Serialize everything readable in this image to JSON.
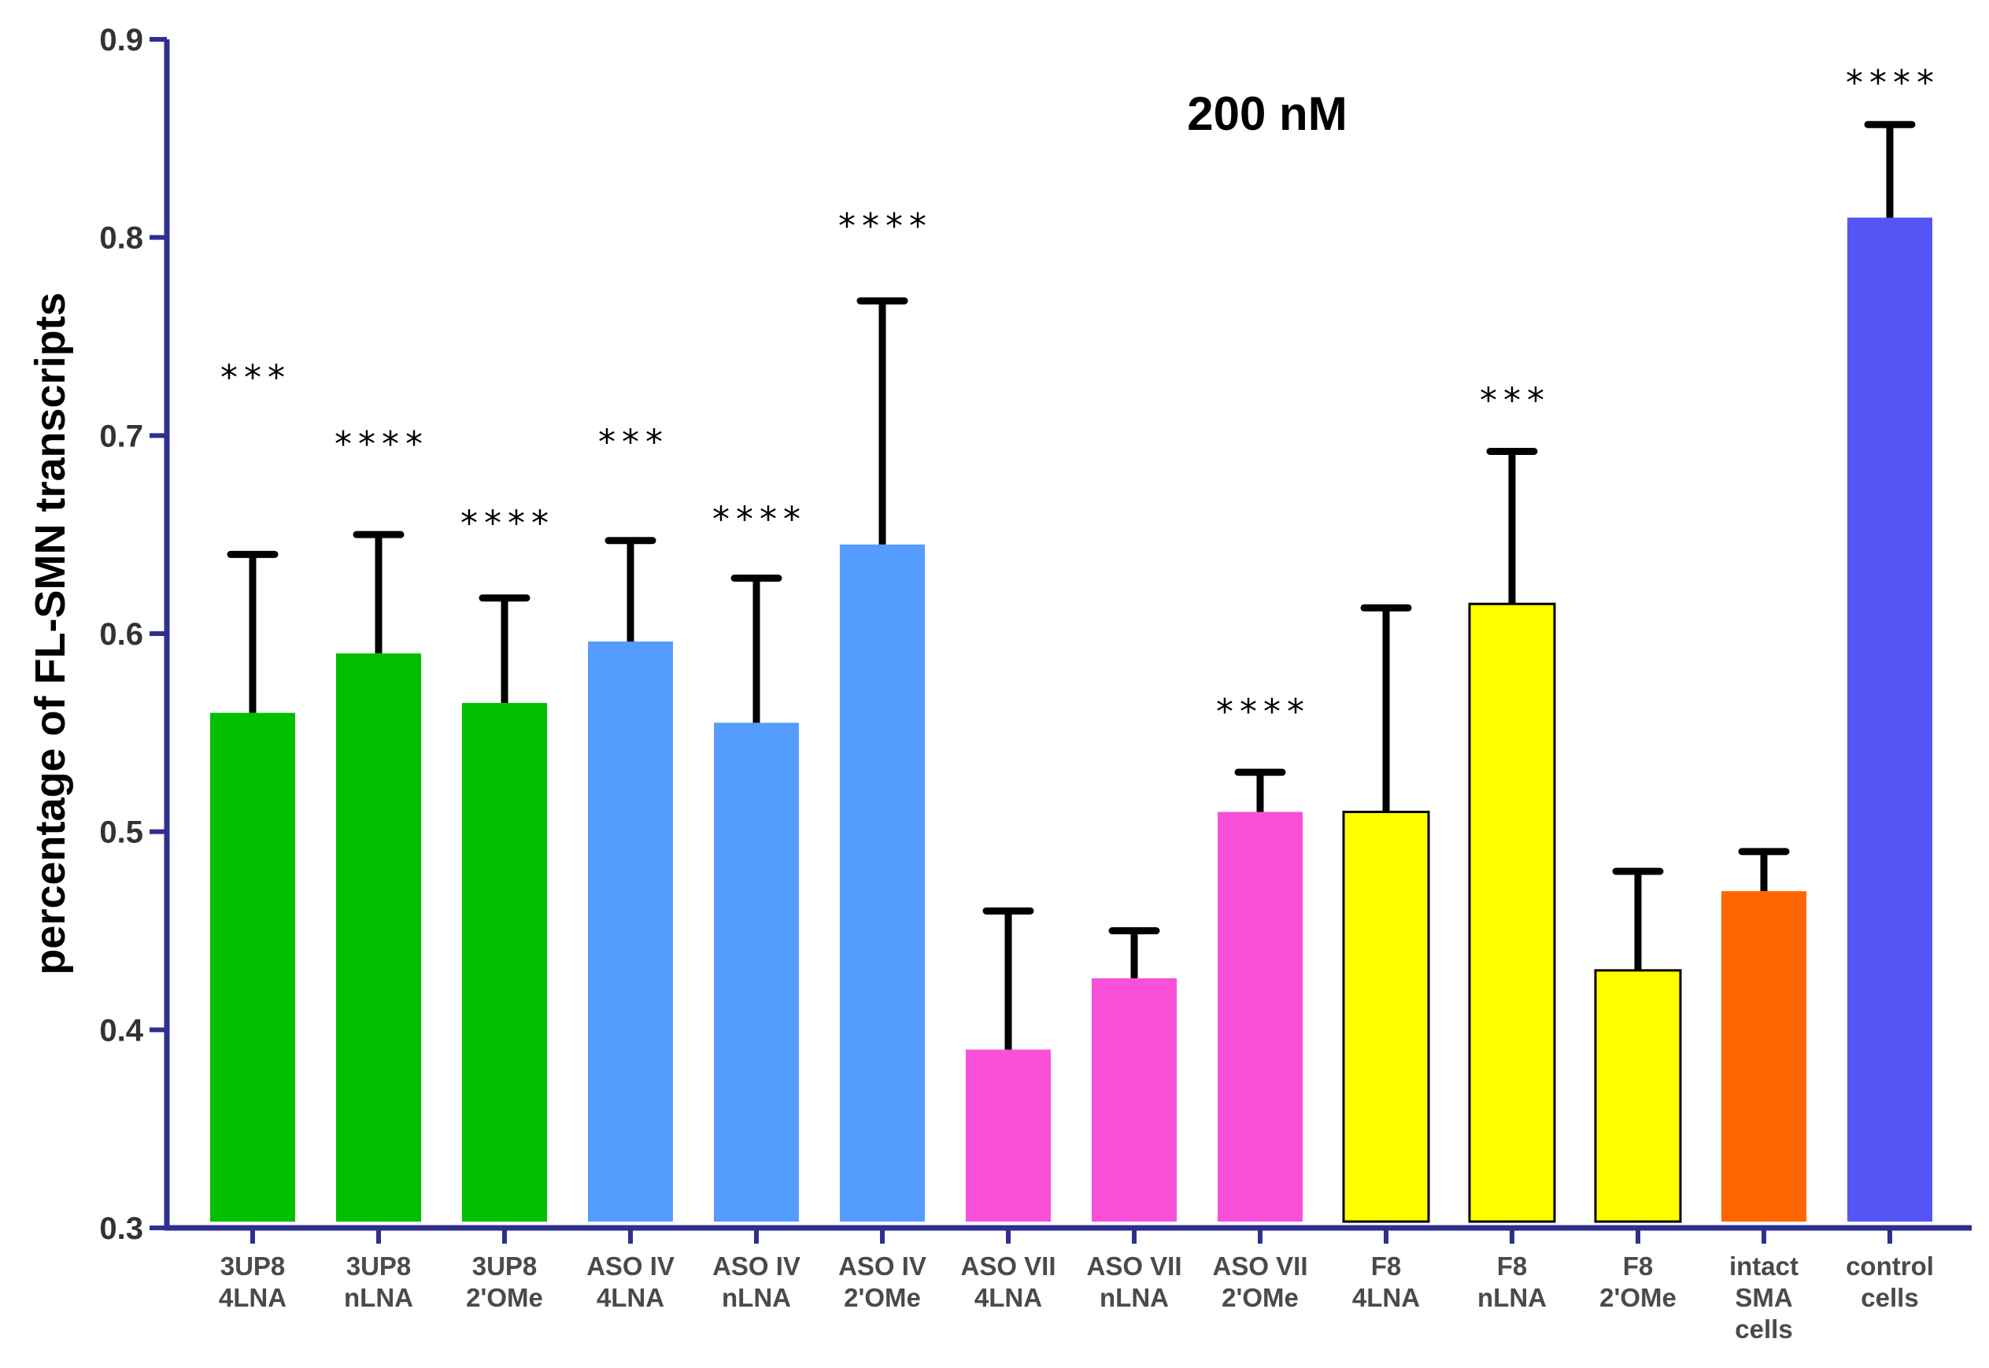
{
  "chart_data": {
    "type": "bar",
    "title": "200 nM",
    "xlabel": "",
    "ylabel": "percentage of FL-SMN transcripts",
    "ylim": [
      0.3,
      0.9
    ],
    "yticks": [
      "0.3",
      "0.4",
      "0.5",
      "0.6",
      "0.7",
      "0.8",
      "0.9"
    ],
    "grid": false,
    "categories": [
      [
        "3UP8",
        "4LNA"
      ],
      [
        "3UP8",
        "nLNA"
      ],
      [
        "3UP8",
        "2'OMe"
      ],
      [
        "ASO IV",
        "4LNA"
      ],
      [
        "ASO IV",
        "nLNA"
      ],
      [
        "ASO IV",
        "2'OMe"
      ],
      [
        "ASO VII",
        "4LNA"
      ],
      [
        "ASO VII",
        "nLNA"
      ],
      [
        "ASO VII",
        "2'OMe"
      ],
      [
        "F8",
        "4LNA"
      ],
      [
        "F8",
        "nLNA"
      ],
      [
        "F8",
        "2'OMe"
      ],
      [
        "intact",
        "SMA",
        "cells"
      ],
      [
        "control",
        "cells"
      ]
    ],
    "values": [
      0.56,
      0.59,
      0.565,
      0.596,
      0.555,
      0.645,
      0.39,
      0.426,
      0.51,
      0.51,
      0.615,
      0.43,
      0.47,
      0.81
    ],
    "error_upper": [
      0.64,
      0.65,
      0.618,
      0.647,
      0.628,
      0.768,
      0.46,
      0.45,
      0.53,
      0.613,
      0.692,
      0.48,
      0.49,
      0.857
    ],
    "significance": [
      "***",
      "****",
      "****",
      "***",
      "****",
      "****",
      "",
      "",
      "****",
      "",
      "***",
      "",
      "",
      "****"
    ],
    "colors": [
      "#00bf00",
      "#00bf00",
      "#00bf00",
      "#559cff",
      "#559cff",
      "#559cff",
      "#f850d8",
      "#f850d8",
      "#f850d8",
      "#ffff00",
      "#ffff00",
      "#ffff00",
      "#ff6600",
      "#5555f5"
    ],
    "bar_outlined": [
      false,
      false,
      false,
      false,
      false,
      false,
      false,
      false,
      false,
      true,
      true,
      true,
      false,
      false
    ],
    "axis_color": "#2f2f8f",
    "error_bar_color": "#000000"
  }
}
